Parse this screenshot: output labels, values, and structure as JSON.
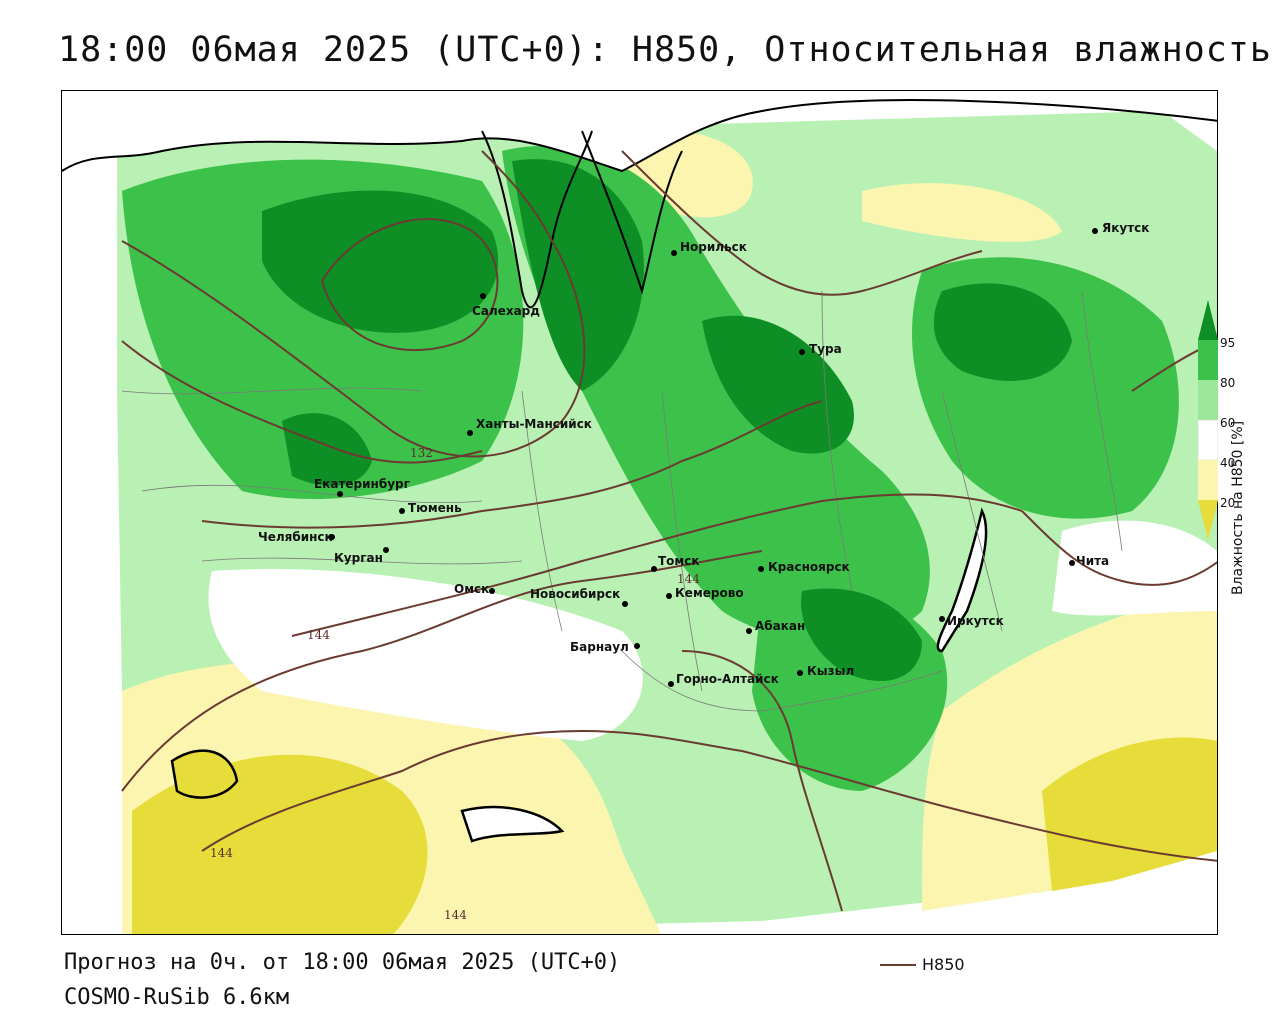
{
  "title": "18:00 06мая 2025 (UTC+0): H850, Относительная влажность",
  "footer": {
    "forecast": "Прогноз на 0ч. от 18:00 06мая 2025 (UTC+0)",
    "model": "COSMO-RuSib 6.6км",
    "line_legend": "H850"
  },
  "colorbar": {
    "label": "Влажность на H850 [%]",
    "ticks": [
      "95",
      "80",
      "60",
      "40",
      "20"
    ],
    "colors": [
      "#0d8f26",
      "#3cc24a",
      "#9be89a",
      "#ffffff",
      "#fbf5b0",
      "#e6dc3a"
    ]
  },
  "contour_labels": [
    "132",
    "144",
    "144",
    "144",
    "144"
  ],
  "cities": [
    "Якутск",
    "Норильск",
    "Салехард",
    "Тура",
    "Ханты-Мансийск",
    "Екатеринбург",
    "Тюмень",
    "Челябинск",
    "Курган",
    "Омск",
    "Новосибирск",
    "Томск",
    "Красноярск",
    "Кемерово",
    "Абакан",
    "Барнаул",
    "Горно-Алтайск",
    "Кызыл",
    "Иркутск",
    "Чита"
  ]
}
